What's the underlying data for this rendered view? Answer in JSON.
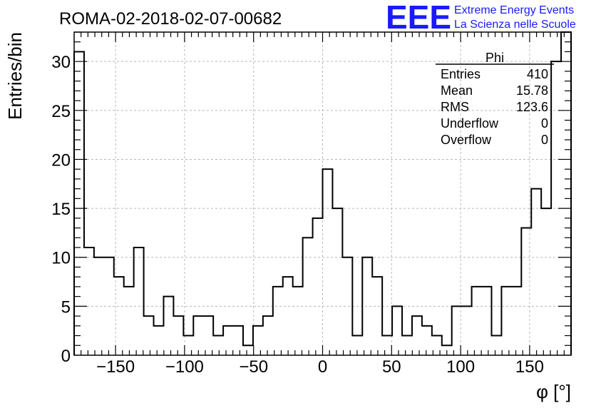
{
  "title": "ROMA-02-2018-02-07-00682",
  "logo": {
    "mark": "EEE",
    "line1": "Extreme Energy Events",
    "line2": "La Scienza nelle Scuole",
    "color": "#1a1aff"
  },
  "stats_box": {
    "title": "Phi",
    "rows": [
      {
        "label": "Entries",
        "value": "410"
      },
      {
        "label": "Mean",
        "value": "15.78"
      },
      {
        "label": "RMS",
        "value": "123.6"
      },
      {
        "label": "Underflow",
        "value": "0"
      },
      {
        "label": "Overflow",
        "value": "0"
      }
    ]
  },
  "chart_data": {
    "type": "bar",
    "style": "step-histogram",
    "title": "ROMA-02-2018-02-07-00682",
    "xlabel": "φ [°]",
    "ylabel": "Entries/bin",
    "xlim": [
      -180,
      180
    ],
    "ylim": [
      0,
      33
    ],
    "bin_width": 7.2,
    "grid": true,
    "x_ticks": [
      -150,
      -100,
      -50,
      0,
      50,
      100,
      150
    ],
    "y_ticks": [
      0,
      5,
      10,
      15,
      20,
      25,
      30
    ],
    "values": [
      31,
      11,
      10,
      10,
      8,
      7,
      11,
      4,
      3,
      6,
      4,
      2,
      4,
      4,
      2,
      3,
      3,
      1,
      3,
      4,
      7,
      8,
      7,
      12,
      14,
      19,
      15,
      10,
      2,
      10,
      8,
      2,
      5,
      2,
      4,
      3,
      2,
      1,
      5,
      5,
      7,
      7,
      2,
      7,
      7,
      13,
      17,
      15,
      30,
      33
    ]
  }
}
